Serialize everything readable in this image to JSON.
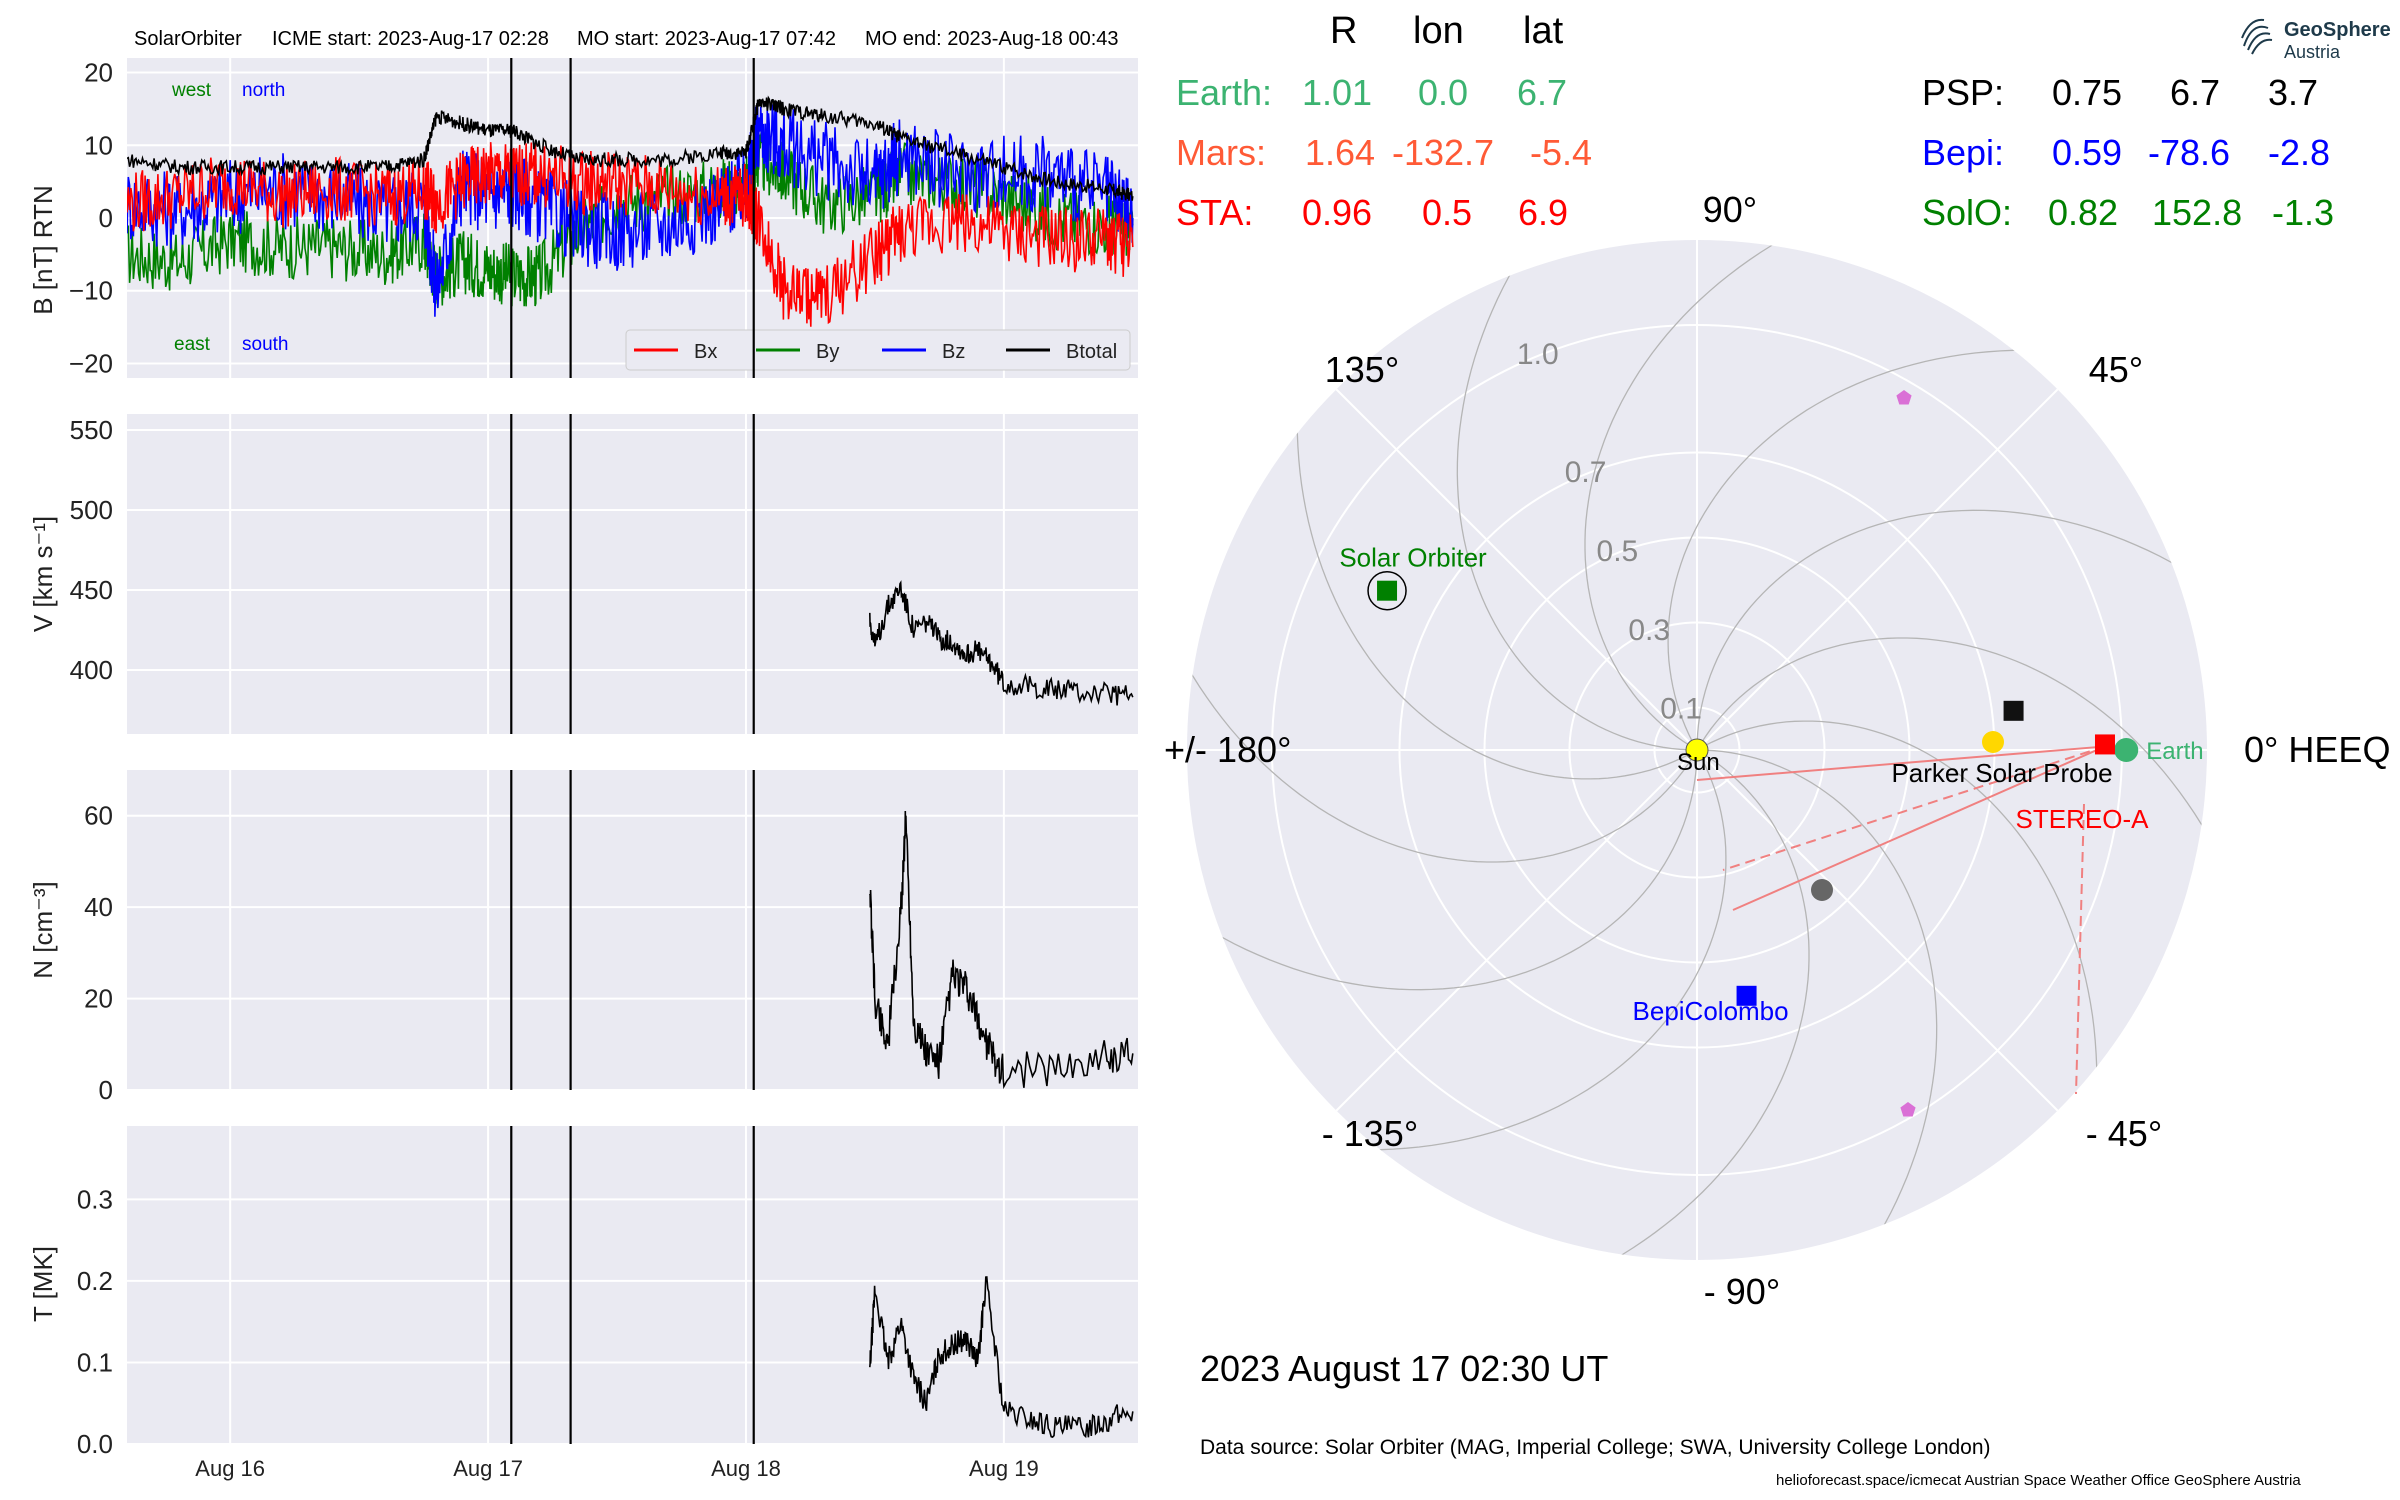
{
  "header": {
    "spacecraft": "SolarOrbiter",
    "icme_start": "ICME start: 2023-Aug-17 02:28",
    "mo_start": "MO start: 2023-Aug-17 07:42",
    "mo_end": "MO end: 2023-Aug-18 00:43"
  },
  "logo": {
    "line1": "GeoSphere",
    "line2": "Austria"
  },
  "positions": {
    "columns": [
      "R",
      "lon",
      "lat"
    ],
    "rows_left": [
      {
        "name": "Earth:",
        "R": "1.01",
        "lon": "0.0",
        "lat": "6.7",
        "color": "#3cb371"
      },
      {
        "name": "Mars:",
        "R": "1.64",
        "lon": "-132.7",
        "lat": "-5.4",
        "color": "#ff5a36"
      },
      {
        "name": "STA:",
        "R": "0.96",
        "lon": "0.5",
        "lat": "6.9",
        "color": "#ff0000"
      }
    ],
    "rows_right": [
      {
        "name": "PSP:",
        "R": "0.75",
        "lon": "6.7",
        "lat": "3.7",
        "color": "#000000"
      },
      {
        "name": "Bepi:",
        "R": "0.59",
        "lon": "-78.6",
        "lat": "-2.8",
        "color": "#0000ff"
      },
      {
        "name": "SolO:",
        "R": "0.82",
        "lon": "152.8",
        "lat": "-1.3",
        "color": "#008000"
      }
    ]
  },
  "date_label": "2023 August 17  02:30 UT",
  "footer": {
    "source": "Data source: Solar Orbiter (MAG, Imperial College; SWA, University College London)",
    "credits": "helioforecast.space/icmecat   Austrian Space Weather Office   GeoSphere Austria"
  },
  "chart_data": [
    {
      "type": "line",
      "panel": "magnetic field",
      "ylabel": "B [nT] RTN",
      "ylim": [
        -22,
        22
      ],
      "yticks": [
        "20",
        "10",
        "0",
        "−10",
        "−20"
      ],
      "annotations": {
        "top_left": "west",
        "top_right": "north",
        "bottom_left": "east",
        "bottom_right": "south"
      },
      "colors": {
        "Bx": "#ff0000",
        "By": "#008000",
        "Bz": "#0000ff",
        "Btotal": "#000000"
      },
      "legend": [
        "Bx",
        "By",
        "Bz",
        "Btotal"
      ],
      "legend_position": "lower-right",
      "x_days": [
        15.6,
        15.8,
        16.0,
        16.2,
        16.4,
        16.6,
        16.75,
        16.8,
        16.9,
        17.0,
        17.1,
        17.2,
        17.35,
        17.5,
        17.7,
        17.9,
        18.0,
        18.05,
        18.15,
        18.3,
        18.5,
        18.6,
        18.8,
        19.0,
        19.2,
        19.4,
        19.5
      ],
      "series": [
        {
          "name": "Btotal",
          "values": [
            8,
            7,
            7,
            7,
            7,
            7,
            8,
            14,
            13,
            12,
            12,
            10,
            8,
            8,
            8,
            9,
            9,
            16,
            15,
            14,
            13,
            11,
            9,
            7,
            5,
            4,
            3
          ]
        },
        {
          "name": "Bx",
          "values": [
            2,
            3,
            5,
            3,
            4,
            3,
            4,
            2,
            5,
            6,
            6,
            6,
            5,
            5,
            4,
            3,
            3,
            0,
            -10,
            -11,
            -5,
            -2,
            0,
            -2,
            -3,
            -3,
            -4
          ]
        },
        {
          "name": "By",
          "values": [
            -5,
            -6,
            -3,
            -4,
            -4,
            -5,
            -3,
            -8,
            -6,
            -7,
            -8,
            -8,
            -2,
            2,
            3,
            4,
            4,
            8,
            6,
            2,
            3,
            6,
            5,
            3,
            0,
            -1,
            -1
          ]
        },
        {
          "name": "Bz",
          "values": [
            2,
            1,
            3,
            4,
            3,
            1,
            2,
            -10,
            5,
            3,
            4,
            2,
            -1,
            -2,
            -1,
            2,
            4,
            12,
            10,
            8,
            5,
            9,
            6,
            6,
            6,
            3,
            0
          ]
        }
      ]
    },
    {
      "type": "line",
      "panel": "speed",
      "ylabel": "V [km s⁻¹]",
      "ylim": [
        360,
        560
      ],
      "yticks": [
        "550",
        "500",
        "450",
        "400"
      ],
      "x_days": [
        18.48,
        18.5,
        18.55,
        18.6,
        18.65,
        18.7,
        18.75,
        18.8,
        18.85,
        18.9,
        18.95,
        19.0,
        19.1,
        19.2,
        19.3,
        19.4,
        19.5
      ],
      "values": [
        432,
        415,
        440,
        452,
        425,
        430,
        420,
        418,
        410,
        412,
        405,
        392,
        390,
        388,
        386,
        385,
        383
      ]
    },
    {
      "type": "line",
      "panel": "density",
      "ylabel": "N [cm⁻³]",
      "ylim": [
        0,
        70
      ],
      "yticks": [
        "60",
        "40",
        "20",
        "0"
      ],
      "x_days": [
        18.48,
        18.5,
        18.55,
        18.6,
        18.62,
        18.65,
        18.7,
        18.75,
        18.8,
        18.85,
        18.9,
        18.95,
        19.0,
        19.2,
        19.4,
        19.5
      ],
      "values": [
        45,
        20,
        10,
        38,
        60,
        15,
        8,
        6,
        25,
        22,
        15,
        8,
        4,
        5,
        7,
        8
      ]
    },
    {
      "type": "line",
      "panel": "temperature",
      "ylabel": "T [MK]",
      "ylim": [
        0,
        0.39
      ],
      "yticks": [
        "0.3",
        "0.2",
        "0.1",
        "0.0"
      ],
      "x_days": [
        18.48,
        18.5,
        18.55,
        18.6,
        18.65,
        18.7,
        18.75,
        18.8,
        18.85,
        18.9,
        18.93,
        19.0,
        19.1,
        19.2,
        19.3,
        19.4,
        19.5
      ],
      "values": [
        0.09,
        0.19,
        0.1,
        0.15,
        0.08,
        0.05,
        0.11,
        0.12,
        0.13,
        0.1,
        0.2,
        0.04,
        0.03,
        0.02,
        0.02,
        0.03,
        0.04
      ]
    },
    {
      "type": "scatter",
      "panel": "polar",
      "title": "0° HEEQ",
      "radial_ticks": [
        "0.1",
        "0.3",
        "0.5",
        "0.7",
        "1.0"
      ],
      "angle_labels": [
        "90°",
        "45°",
        "0° HEEQ",
        "- 45°",
        "- 90°",
        "- 135°",
        "+/- 180°",
        "135°"
      ],
      "bodies": [
        {
          "name": "Sun",
          "lon": 0,
          "r": 0,
          "color": "#ffff00"
        },
        {
          "name": "Earth",
          "lon": 0.0,
          "r": 1.01,
          "color": "#3cb371"
        },
        {
          "name": "STEREO-A",
          "lon": 0.5,
          "r": 0.96,
          "color": "#ff0000"
        },
        {
          "name": "Parker Solar Probe",
          "lon": 6.7,
          "r": 0.75,
          "color": "#000000"
        },
        {
          "name": "BepiColombo",
          "lon": -78.6,
          "r": 0.59,
          "color": "#0000ff"
        },
        {
          "name": "Solar Orbiter",
          "lon": 152.8,
          "r": 0.82,
          "color": "#008000"
        }
      ]
    }
  ],
  "x_axis": {
    "ticks": [
      "Aug 16",
      "Aug 17",
      "Aug 18",
      "Aug 19"
    ]
  }
}
